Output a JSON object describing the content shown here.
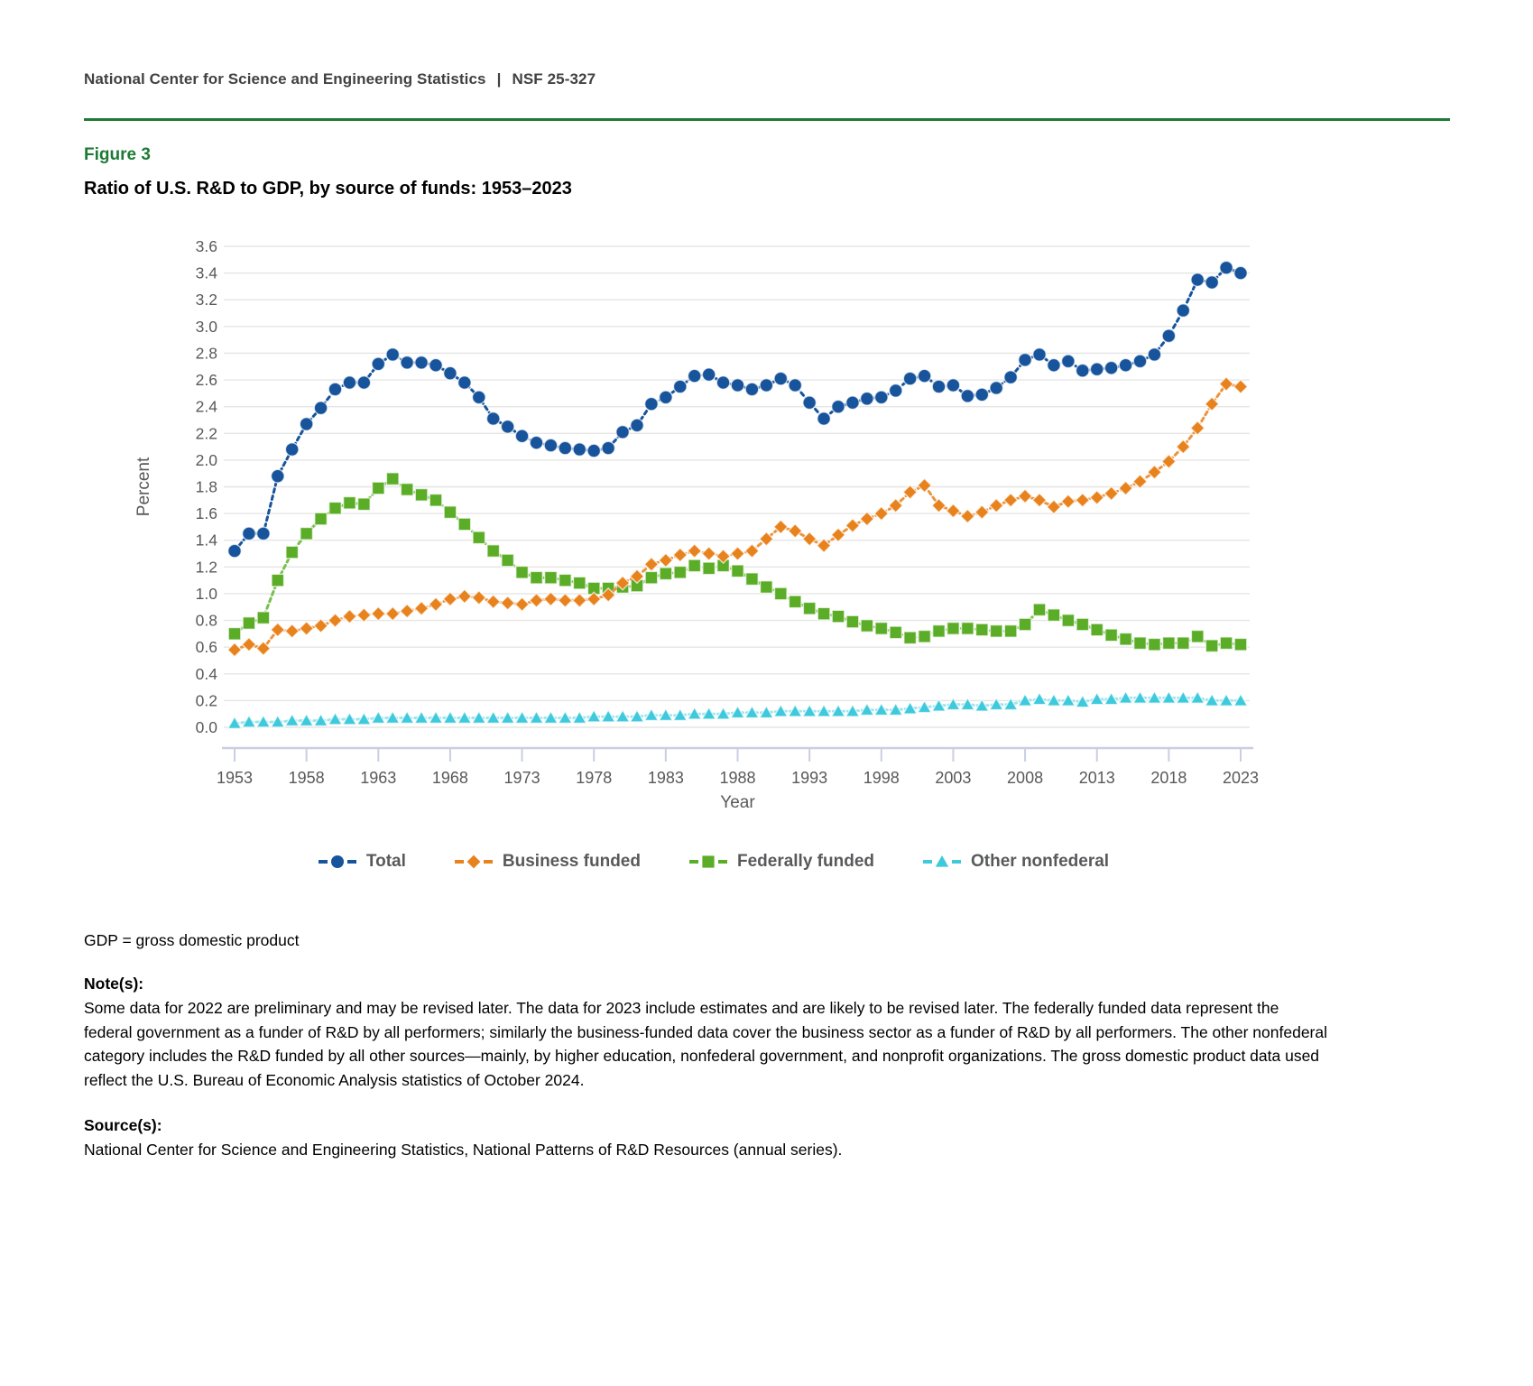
{
  "header": {
    "org": "National Center for Science and Engineering Statistics",
    "separator": "|",
    "report_number": "NSF 25-327"
  },
  "figure_label": "Figure 3",
  "title": "Ratio of U.S. R&D to GDP, by source of funds: 1953–2023",
  "chart_data": {
    "type": "line",
    "title": "Ratio of U.S. R&D to GDP, by source of funds: 1953–2023",
    "xlabel": "Year",
    "ylabel": "Percent",
    "x_range": [
      1953,
      2023
    ],
    "ylim": [
      0.0,
      3.6
    ],
    "y_step": 0.2,
    "grid": "horizontal",
    "legend_position": "bottom",
    "x_tick_labels": [
      "1953",
      "1958",
      "1963",
      "1968",
      "1973",
      "1978",
      "1983",
      "1988",
      "1993",
      "1998",
      "2003",
      "2008",
      "2013",
      "2018",
      "2023"
    ],
    "y_tick_labels": [
      "0.0",
      "0.2",
      "0.4",
      "0.6",
      "0.8",
      "1.0",
      "1.2",
      "1.4",
      "1.6",
      "1.8",
      "2.0",
      "2.2",
      "2.4",
      "2.6",
      "2.8",
      "3.0",
      "3.2",
      "3.4",
      "3.6"
    ],
    "series": [
      {
        "name": "Total",
        "marker": "circle",
        "color": "#17549B",
        "line_color": "#17549B",
        "values": [
          1.32,
          1.45,
          1.45,
          1.88,
          2.08,
          2.27,
          2.39,
          2.53,
          2.58,
          2.58,
          2.72,
          2.79,
          2.73,
          2.73,
          2.71,
          2.65,
          2.58,
          2.47,
          2.31,
          2.25,
          2.18,
          2.13,
          2.11,
          2.09,
          2.08,
          2.07,
          2.09,
          2.21,
          2.26,
          2.42,
          2.47,
          2.55,
          2.63,
          2.64,
          2.58,
          2.56,
          2.53,
          2.56,
          2.61,
          2.56,
          2.43,
          2.31,
          2.4,
          2.43,
          2.46,
          2.47,
          2.52,
          2.61,
          2.63,
          2.55,
          2.56,
          2.48,
          2.49,
          2.54,
          2.62,
          2.75,
          2.79,
          2.71,
          2.74,
          2.67,
          2.68,
          2.69,
          2.71,
          2.74,
          2.79,
          2.93,
          3.12,
          3.35,
          3.33,
          3.44,
          3.4
        ]
      },
      {
        "name": "Business funded",
        "marker": "diamond",
        "color": "#E8821D",
        "line_color": "#EC9540",
        "values": [
          0.58,
          0.62,
          0.59,
          0.73,
          0.72,
          0.74,
          0.76,
          0.8,
          0.83,
          0.84,
          0.85,
          0.85,
          0.87,
          0.89,
          0.92,
          0.96,
          0.98,
          0.97,
          0.94,
          0.93,
          0.92,
          0.95,
          0.96,
          0.95,
          0.95,
          0.96,
          0.99,
          1.08,
          1.13,
          1.22,
          1.25,
          1.29,
          1.32,
          1.3,
          1.28,
          1.3,
          1.32,
          1.41,
          1.5,
          1.47,
          1.41,
          1.36,
          1.44,
          1.51,
          1.56,
          1.6,
          1.66,
          1.76,
          1.81,
          1.66,
          1.62,
          1.58,
          1.61,
          1.66,
          1.7,
          1.73,
          1.7,
          1.65,
          1.69,
          1.7,
          1.72,
          1.75,
          1.79,
          1.84,
          1.91,
          1.99,
          2.1,
          2.24,
          2.42,
          2.57,
          2.55
        ]
      },
      {
        "name": "Federally funded",
        "marker": "square",
        "color": "#5BAD27",
        "line_color": "#79BF4D",
        "values": [
          0.7,
          0.78,
          0.82,
          1.1,
          1.31,
          1.45,
          1.56,
          1.64,
          1.68,
          1.67,
          1.79,
          1.86,
          1.78,
          1.74,
          1.7,
          1.61,
          1.52,
          1.42,
          1.32,
          1.25,
          1.16,
          1.12,
          1.12,
          1.1,
          1.08,
          1.04,
          1.04,
          1.05,
          1.06,
          1.12,
          1.15,
          1.16,
          1.21,
          1.19,
          1.21,
          1.17,
          1.11,
          1.05,
          1.0,
          0.94,
          0.89,
          0.85,
          0.83,
          0.79,
          0.76,
          0.74,
          0.71,
          0.67,
          0.68,
          0.72,
          0.74,
          0.74,
          0.73,
          0.72,
          0.72,
          0.77,
          0.88,
          0.84,
          0.8,
          0.77,
          0.73,
          0.69,
          0.66,
          0.63,
          0.62,
          0.63,
          0.63,
          0.68,
          0.61,
          0.63,
          0.62
        ]
      },
      {
        "name": "Other nonfederal",
        "marker": "triangle",
        "color": "#3EC9DC",
        "line_color": "#9BE5EF",
        "values": [
          0.03,
          0.04,
          0.04,
          0.04,
          0.05,
          0.05,
          0.05,
          0.06,
          0.06,
          0.06,
          0.07,
          0.07,
          0.07,
          0.07,
          0.07,
          0.07,
          0.07,
          0.07,
          0.07,
          0.07,
          0.07,
          0.07,
          0.07,
          0.07,
          0.07,
          0.08,
          0.08,
          0.08,
          0.08,
          0.09,
          0.09,
          0.09,
          0.1,
          0.1,
          0.1,
          0.11,
          0.11,
          0.11,
          0.12,
          0.12,
          0.12,
          0.12,
          0.12,
          0.12,
          0.13,
          0.13,
          0.13,
          0.14,
          0.15,
          0.16,
          0.17,
          0.17,
          0.16,
          0.17,
          0.17,
          0.2,
          0.21,
          0.2,
          0.2,
          0.19,
          0.21,
          0.21,
          0.22,
          0.22,
          0.22,
          0.22,
          0.22,
          0.22,
          0.2,
          0.2,
          0.2
        ]
      }
    ]
  },
  "footnotes": {
    "gdp_definition": "GDP = gross domestic product",
    "notes_label": "Note(s):",
    "notes_text": "Some data for 2022 are preliminary and may be revised later. The data for 2023 include estimates and are likely to be revised later. The federally funded data represent the federal government as a funder of R&D by all performers; similarly the business-funded data cover the business sector as a funder of R&D by all performers. The other nonfederal category includes the R&D funded by all other sources—mainly, by higher education, nonfederal government, and nonprofit organizations. The gross domestic product data used reflect the U.S. Bureau of Economic Analysis statistics of October 2024.",
    "sources_label": "Source(s):",
    "sources_text": "National Center for Science and Engineering Statistics, National Patterns of R&D Resources (annual series)."
  },
  "colors": {
    "rule_green": "#1E7A34",
    "figure_label_green": "#1D7A34",
    "axis_text": "#595959",
    "legend_text": "#58595B",
    "gridline": "#E5E5E5",
    "axis_line": "#C9CFE3"
  }
}
